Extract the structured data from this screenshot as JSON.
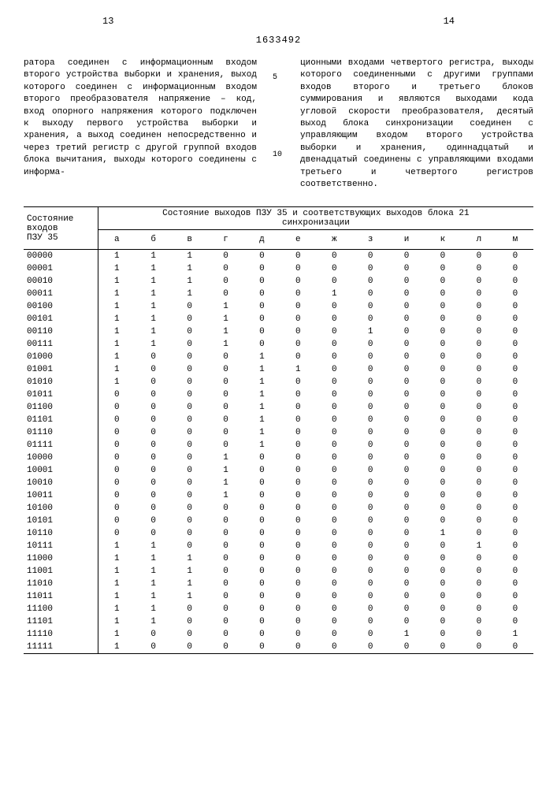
{
  "page_left": "13",
  "page_right": "14",
  "doc_number": "1633492",
  "markers": {
    "m5": "5",
    "m10": "10"
  },
  "left_text": "ратора соединен с информационным входом второго устройства выборки и хранения, выход которого соединен с информационным входом второго преобразователя напряжение – код, вход опорного напряжения которого подключен к выходу первого устройства выборки и хранения, а выход соединен непосредственно и через третий регистр с другой группой входов блока вычитания, выходы которого соединены с информа-",
  "right_text": "ционными входами четвертого регистра, выходы которого соединенными с другими группами входов второго и третьего блоков суммирования и являются выходами кода угловой скорости преобразователя, десятый выход блока синхронизации соединен с управляющим входом второго устройства выборки и хранения, одиннадцатый и двенадцатый соединены с управляющими входами третьего и четвертого регистров соответственно.",
  "table": {
    "input_header_line1": "Состояние",
    "input_header_line2": "входов",
    "input_header_line3": "ПЗУ 35",
    "output_header_line1": "Состояние выходов ПЗУ 35 и соответствующих выходов блока 21",
    "output_header_line2": "синхронизации",
    "columns": [
      "а",
      "б",
      "в",
      "г",
      "д",
      "е",
      "ж",
      "з",
      "и",
      "к",
      "л",
      "м"
    ],
    "rows": [
      {
        "i": "00000",
        "v": [
          "1",
          "1",
          "1",
          "0",
          "0",
          "0",
          "0",
          "0",
          "0",
          "0",
          "0",
          "0"
        ]
      },
      {
        "i": "00001",
        "v": [
          "1",
          "1",
          "1",
          "0",
          "0",
          "0",
          "0",
          "0",
          "0",
          "0",
          "0",
          "0"
        ]
      },
      {
        "i": "00010",
        "v": [
          "1",
          "1",
          "1",
          "0",
          "0",
          "0",
          "0",
          "0",
          "0",
          "0",
          "0",
          "0"
        ]
      },
      {
        "i": "00011",
        "v": [
          "1",
          "1",
          "1",
          "0",
          "0",
          "0",
          "1",
          "0",
          "0",
          "0",
          "0",
          "0"
        ]
      },
      {
        "i": "00100",
        "v": [
          "1",
          "1",
          "0",
          "1",
          "0",
          "0",
          "0",
          "0",
          "0",
          "0",
          "0",
          "0"
        ]
      },
      {
        "i": "00101",
        "v": [
          "1",
          "1",
          "0",
          "1",
          "0",
          "0",
          "0",
          "0",
          "0",
          "0",
          "0",
          "0"
        ]
      },
      {
        "i": "00110",
        "v": [
          "1",
          "1",
          "0",
          "1",
          "0",
          "0",
          "0",
          "1",
          "0",
          "0",
          "0",
          "0"
        ]
      },
      {
        "i": "00111",
        "v": [
          "1",
          "1",
          "0",
          "1",
          "0",
          "0",
          "0",
          "0",
          "0",
          "0",
          "0",
          "0"
        ]
      },
      {
        "i": "01000",
        "v": [
          "1",
          "0",
          "0",
          "0",
          "1",
          "0",
          "0",
          "0",
          "0",
          "0",
          "0",
          "0"
        ]
      },
      {
        "i": "01001",
        "v": [
          "1",
          "0",
          "0",
          "0",
          "1",
          "1",
          "0",
          "0",
          "0",
          "0",
          "0",
          "0"
        ]
      },
      {
        "i": "01010",
        "v": [
          "1",
          "0",
          "0",
          "0",
          "1",
          "0",
          "0",
          "0",
          "0",
          "0",
          "0",
          "0"
        ]
      },
      {
        "i": "01011",
        "v": [
          "0",
          "0",
          "0",
          "0",
          "1",
          "0",
          "0",
          "0",
          "0",
          "0",
          "0",
          "0"
        ]
      },
      {
        "i": "01100",
        "v": [
          "0",
          "0",
          "0",
          "0",
          "1",
          "0",
          "0",
          "0",
          "0",
          "0",
          "0",
          "0"
        ]
      },
      {
        "i": "01101",
        "v": [
          "0",
          "0",
          "0",
          "0",
          "1",
          "0",
          "0",
          "0",
          "0",
          "0",
          "0",
          "0"
        ]
      },
      {
        "i": "01110",
        "v": [
          "0",
          "0",
          "0",
          "0",
          "1",
          "0",
          "0",
          "0",
          "0",
          "0",
          "0",
          "0"
        ]
      },
      {
        "i": "01111",
        "v": [
          "0",
          "0",
          "0",
          "0",
          "1",
          "0",
          "0",
          "0",
          "0",
          "0",
          "0",
          "0"
        ]
      },
      {
        "i": "10000",
        "v": [
          "0",
          "0",
          "0",
          "1",
          "0",
          "0",
          "0",
          "0",
          "0",
          "0",
          "0",
          "0"
        ]
      },
      {
        "i": "10001",
        "v": [
          "0",
          "0",
          "0",
          "1",
          "0",
          "0",
          "0",
          "0",
          "0",
          "0",
          "0",
          "0"
        ]
      },
      {
        "i": "10010",
        "v": [
          "0",
          "0",
          "0",
          "1",
          "0",
          "0",
          "0",
          "0",
          "0",
          "0",
          "0",
          "0"
        ]
      },
      {
        "i": "10011",
        "v": [
          "0",
          "0",
          "0",
          "1",
          "0",
          "0",
          "0",
          "0",
          "0",
          "0",
          "0",
          "0"
        ]
      },
      {
        "i": "10100",
        "v": [
          "0",
          "0",
          "0",
          "0",
          "0",
          "0",
          "0",
          "0",
          "0",
          "0",
          "0",
          "0"
        ]
      },
      {
        "i": "10101",
        "v": [
          "0",
          "0",
          "0",
          "0",
          "0",
          "0",
          "0",
          "0",
          "0",
          "0",
          "0",
          "0"
        ]
      },
      {
        "i": "10110",
        "v": [
          "0",
          "0",
          "0",
          "0",
          "0",
          "0",
          "0",
          "0",
          "0",
          "1",
          "0",
          "0"
        ]
      },
      {
        "i": "10111",
        "v": [
          "1",
          "1",
          "0",
          "0",
          "0",
          "0",
          "0",
          "0",
          "0",
          "0",
          "1",
          "0"
        ]
      },
      {
        "i": "11000",
        "v": [
          "1",
          "1",
          "1",
          "0",
          "0",
          "0",
          "0",
          "0",
          "0",
          "0",
          "0",
          "0"
        ]
      },
      {
        "i": "11001",
        "v": [
          "1",
          "1",
          "1",
          "0",
          "0",
          "0",
          "0",
          "0",
          "0",
          "0",
          "0",
          "0"
        ]
      },
      {
        "i": "11010",
        "v": [
          "1",
          "1",
          "1",
          "0",
          "0",
          "0",
          "0",
          "0",
          "0",
          "0",
          "0",
          "0"
        ]
      },
      {
        "i": "11011",
        "v": [
          "1",
          "1",
          "1",
          "0",
          "0",
          "0",
          "0",
          "0",
          "0",
          "0",
          "0",
          "0"
        ]
      },
      {
        "i": "11100",
        "v": [
          "1",
          "1",
          "0",
          "0",
          "0",
          "0",
          "0",
          "0",
          "0",
          "0",
          "0",
          "0"
        ]
      },
      {
        "i": "11101",
        "v": [
          "1",
          "1",
          "0",
          "0",
          "0",
          "0",
          "0",
          "0",
          "0",
          "0",
          "0",
          "0"
        ]
      },
      {
        "i": "11110",
        "v": [
          "1",
          "0",
          "0",
          "0",
          "0",
          "0",
          "0",
          "0",
          "1",
          "0",
          "0",
          "1"
        ]
      },
      {
        "i": "11111",
        "v": [
          "1",
          "0",
          "0",
          "0",
          "0",
          "0",
          "0",
          "0",
          "0",
          "0",
          "0",
          "0"
        ]
      }
    ]
  }
}
